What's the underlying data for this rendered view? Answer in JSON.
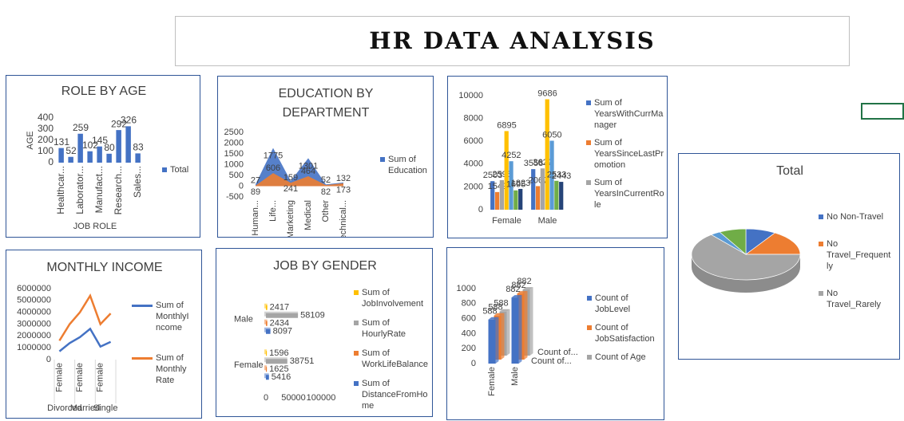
{
  "title": "HR DATA ANALYSIS",
  "chart_data": [
    {
      "type": "bar",
      "title": "ROLE BY AGE",
      "x_label": "JOB ROLE",
      "y_label": "AGE",
      "categories": [
        "Healthcar...",
        null,
        "Laborator...",
        null,
        "Manufact...",
        null,
        "Research...",
        null,
        "Sales..."
      ],
      "series": [
        {
          "name": "Total",
          "color": "#4472c4",
          "values": [
            131,
            52,
            259,
            102,
            145,
            80,
            292,
            326,
            83
          ]
        }
      ],
      "ylim": [
        0,
        400
      ],
      "yticks": [
        0,
        100,
        200,
        300,
        400
      ]
    },
    {
      "type": "area",
      "title": "EDUCATION BY DEPARTMENT",
      "categories": [
        "Human...",
        "Life...",
        "Marketing",
        "Medical",
        "Other",
        "Technical..."
      ],
      "series": [
        {
          "name": "Sum of Education",
          "color": "#4472c4",
          "values": [
            89,
            1775,
            241,
            1301,
            82,
            173
          ]
        },
        {
          "name": null,
          "color": "#ed7d31",
          "values": [
            27,
            606,
            159,
            464,
            52,
            132
          ]
        }
      ],
      "ylim": [
        -500,
        2500
      ],
      "yticks": [
        -500,
        0,
        500,
        1000,
        1500,
        2000,
        2500
      ]
    },
    {
      "type": "bar",
      "categories": [
        "Female",
        "Male"
      ],
      "series": [
        {
          "name": "Sum of YearsWithCurrManager",
          "color": "#4472c4",
          "values": [
            2503,
            3558
          ]
        },
        {
          "name": "Sum of YearsSinceLastPromotion",
          "color": "#ed7d31",
          "values": [
            1549,
            2067
          ]
        },
        {
          "name": "Sum of YearsInCurrentRole",
          "color": "#a5a5a5",
          "values": [
            2595,
            3622
          ]
        },
        {
          "name": null,
          "color": "#ffc000",
          "values": [
            6895,
            9686
          ]
        },
        {
          "name": null,
          "color": "#5b9bd5",
          "values": [
            4252,
            6050
          ]
        },
        {
          "name": null,
          "color": "#70ad47",
          "values": [
            1695,
            2533
          ]
        },
        {
          "name": null,
          "color": "#264478",
          "values": [
            1823,
            2443
          ]
        }
      ],
      "ylim": [
        0,
        10000
      ],
      "yticks": [
        0,
        2000,
        4000,
        6000,
        8000,
        10000
      ]
    },
    {
      "type": "pie",
      "title": "Total",
      "categories": [
        "No Non-Travel",
        "No Travel_Frequently",
        "No Travel_Rarely",
        null,
        null
      ],
      "values": [
        9,
        16,
        64,
        3,
        8
      ],
      "colors": [
        "#4472c4",
        "#ed7d31",
        "#a5a5a5",
        "#5b9bd5",
        "#70ad47"
      ]
    },
    {
      "type": "line",
      "title": "MONTHLY INCOME",
      "categories": [
        "Female",
        null,
        "Female",
        null,
        "Female",
        null
      ],
      "groups": [
        "Divorced",
        "Married",
        "Single"
      ],
      "series": [
        {
          "name": "Sum of MonthlyIncome",
          "color": "#4472c4",
          "values": [
            700000,
            1400000,
            1900000,
            2600000,
            1100000,
            1500000
          ]
        },
        {
          "name": "Sum of MonthlyRate",
          "color": "#ed7d31",
          "values": [
            1600000,
            3000000,
            4000000,
            5400000,
            3000000,
            3900000
          ]
        }
      ],
      "ylim": [
        0,
        6000000
      ],
      "yticks": [
        0,
        1000000,
        2000000,
        3000000,
        4000000,
        5000000,
        6000000
      ]
    },
    {
      "type": "hbar",
      "title": "JOB BY GENDER",
      "categories": [
        "Female",
        "Male"
      ],
      "series": [
        {
          "name": "Sum of JobInvolvement",
          "color": "#ffc000",
          "values": [
            1596,
            2417
          ]
        },
        {
          "name": "Sum of HourlyRate",
          "color": "#a5a5a5",
          "values": [
            38751,
            58109
          ]
        },
        {
          "name": "Sum of WorkLifeBalance",
          "color": "#ed7d31",
          "values": [
            1625,
            2434
          ]
        },
        {
          "name": "Sum of DistanceFromHome",
          "color": "#4472c4",
          "values": [
            5416,
            8097
          ]
        }
      ],
      "xlim": [
        0,
        100000
      ],
      "xticks": [
        0,
        50000,
        100000
      ]
    },
    {
      "type": "column",
      "categories": [
        "Female",
        "Male"
      ],
      "depth_labels": [
        "Count of...",
        "Count of..."
      ],
      "series": [
        {
          "name": "Count of JobLevel",
          "color": "#4472c4",
          "values": [
            588,
            882
          ]
        },
        {
          "name": "Count of JobSatisfaction",
          "color": "#ed7d31",
          "values": [
            588,
            882
          ]
        },
        {
          "name": "Count of Age",
          "color": "#a5a5a5",
          "values": [
            588,
            882
          ]
        }
      ],
      "ylim": [
        0,
        1000
      ],
      "yticks": [
        0,
        200,
        400,
        600,
        800,
        1000
      ]
    }
  ]
}
